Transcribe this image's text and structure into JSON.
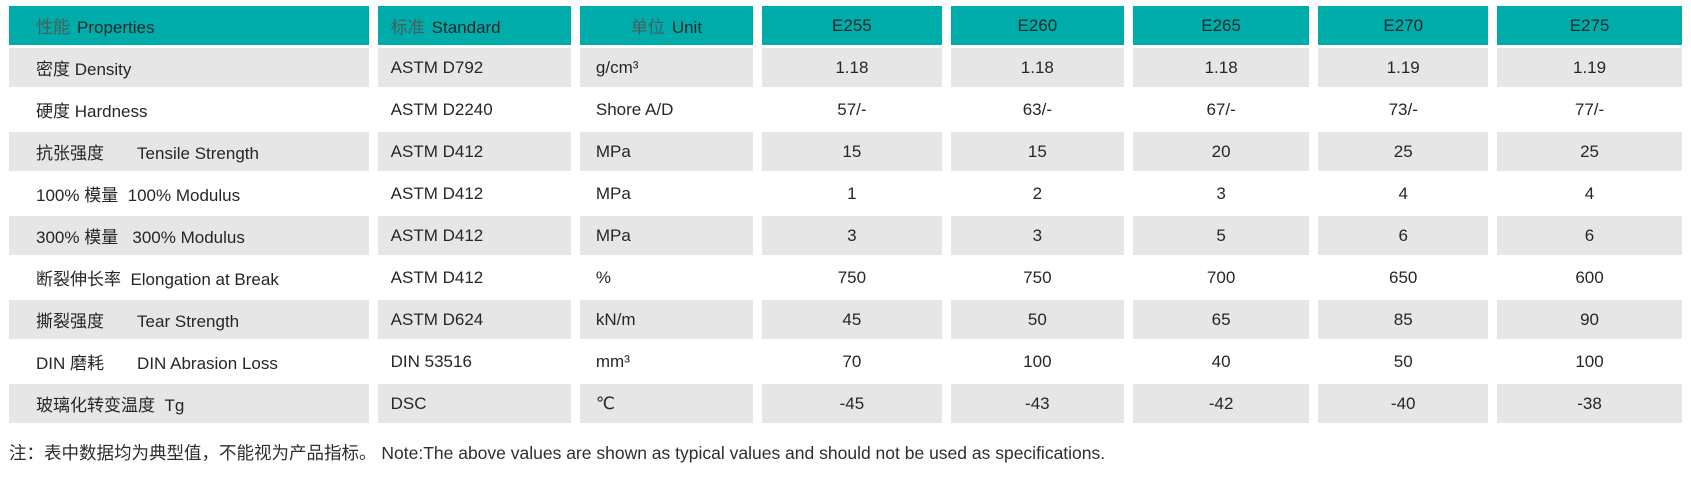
{
  "theme": {
    "header_bg": "#00ACA9",
    "row_alt_bg": "#E6E6E7",
    "row_bg": "#FFFFFF",
    "text_color": "#262626"
  },
  "table": {
    "header": {
      "properties": {
        "cn": "性能",
        "en": "Properties"
      },
      "standard": {
        "cn": "标准",
        "en": "Standard"
      },
      "unit": {
        "cn": "单位",
        "en": "Unit"
      },
      "grades": [
        "E255",
        "E260",
        "E265",
        "E270",
        "E275"
      ]
    },
    "rows": [
      {
        "property": "密度 Density",
        "standard": "ASTM D792",
        "unit": "g/cm³",
        "values": [
          "1.18",
          "1.18",
          "1.18",
          "1.19",
          "1.19"
        ]
      },
      {
        "property": "硬度 Hardness",
        "standard": "ASTM D2240",
        "unit": "Shore A/D",
        "values": [
          "57/-",
          "63/-",
          "67/-",
          "73/-",
          "77/-"
        ]
      },
      {
        "property": "抗张强度       Tensile Strength",
        "standard": "ASTM D412",
        "unit": "MPa",
        "values": [
          "15",
          "15",
          "20",
          "25",
          "25"
        ]
      },
      {
        "property": "100% 模量  100% Modulus",
        "standard": "ASTM D412",
        "unit": "MPa",
        "values": [
          "1",
          "2",
          "3",
          "4",
          "4"
        ]
      },
      {
        "property": "300% 模量   300% Modulus",
        "standard": "ASTM D412",
        "unit": "MPa",
        "values": [
          "3",
          "3",
          "5",
          "6",
          "6"
        ]
      },
      {
        "property": "断裂伸长率  Elongation at Break",
        "standard": "ASTM D412",
        "unit": "%",
        "values": [
          "750",
          "750",
          "700",
          "650",
          "600"
        ]
      },
      {
        "property": "撕裂强度       Tear Strength",
        "standard": "ASTM D624",
        "unit": "kN/m",
        "values": [
          "45",
          "50",
          "65",
          "85",
          "90"
        ]
      },
      {
        "property": "DIN 磨耗       DIN Abrasion Loss",
        "standard": "DIN 53516",
        "unit": "mm³",
        "values": [
          "70",
          "100",
          "40",
          "50",
          "100"
        ]
      },
      {
        "property": "玻璃化转变温度  Tg",
        "standard": "DSC",
        "unit": "℃",
        "values": [
          "-45",
          "-43",
          "-42",
          "-40",
          "-38"
        ]
      }
    ],
    "note": "注：表中数据均为典型值，不能视为产品指标。 Note:The above values are shown as typical values and should not be used as specifications."
  }
}
